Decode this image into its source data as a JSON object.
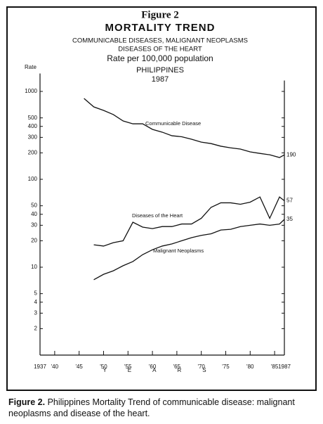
{
  "chart_data": {
    "type": "line",
    "figure_label": "Figure 2",
    "title": "MORTALITY TREND",
    "subtitle_lines": [
      "COMMUNICABLE DISEASES, MALIGNANT NEOPLASMS",
      "DISEASES OF THE HEART",
      "Rate per 100,000 population",
      "PHILIPPINES",
      "1987"
    ],
    "y_label": "Rate",
    "x_label": "YEARS",
    "log_y": true,
    "xlim": [
      1937,
      1987
    ],
    "ylim": [
      1,
      1600
    ],
    "xticks": [
      1937,
      {
        "value": 1940,
        "label": "'40"
      },
      {
        "value": 1945,
        "label": "'45"
      },
      {
        "value": 1950,
        "label": "'50"
      },
      {
        "value": 1955,
        "label": "'55"
      },
      {
        "value": 1960,
        "label": "'60"
      },
      {
        "value": 1965,
        "label": "'65"
      },
      {
        "value": 1970,
        "label": "'70"
      },
      {
        "value": 1975,
        "label": "'75"
      },
      {
        "value": 1980,
        "label": "'80"
      },
      {
        "value": 1985,
        "label": "'85"
      },
      1987
    ],
    "yticks": [
      1000,
      500,
      400,
      300,
      200,
      100,
      50,
      40,
      30,
      20,
      10,
      5,
      4,
      3,
      2
    ],
    "x": [
      1946,
      1948,
      1950,
      1952,
      1954,
      1956,
      1958,
      1960,
      1962,
      1964,
      1966,
      1968,
      1970,
      1972,
      1974,
      1976,
      1978,
      1980,
      1982,
      1984,
      1986,
      1987
    ],
    "series": [
      {
        "name": "Communicable Disease",
        "color": "#111111",
        "values": [
          832,
          667,
          608,
          545,
          461,
          428,
          428,
          370,
          344,
          313,
          305,
          286,
          265,
          255,
          238,
          228,
          221,
          205,
          197,
          190,
          177,
          190
        ],
        "value_labels": [
          null,
          null,
          null,
          null,
          null,
          null,
          null,
          null,
          null,
          null,
          null,
          null,
          null,
          null,
          null,
          null,
          null,
          null,
          null,
          null,
          null,
          "190"
        ]
      },
      {
        "name": "Diseases of the Heart",
        "color": "#111111",
        "values": [
          null,
          18,
          17.4,
          19,
          20,
          32.5,
          28.6,
          27.5,
          29,
          29,
          31,
          31,
          36,
          48,
          54,
          54,
          52,
          55,
          63,
          36,
          63,
          57
        ],
        "value_labels": [
          null,
          null,
          null,
          null,
          null,
          null,
          null,
          null,
          null,
          null,
          null,
          null,
          null,
          null,
          null,
          null,
          null,
          null,
          null,
          null,
          null,
          "57"
        ]
      },
      {
        "name": "Malignant Neoplasms",
        "color": "#111111",
        "values": [
          null,
          7.2,
          8.3,
          9.1,
          10.4,
          11.6,
          13.9,
          15.8,
          17.4,
          18.4,
          20,
          21.7,
          23,
          24,
          26.5,
          27,
          29,
          30,
          31,
          30,
          31,
          35
        ],
        "value_labels": [
          null,
          null,
          null,
          null,
          null,
          null,
          null,
          null,
          null,
          null,
          null,
          null,
          null,
          null,
          null,
          null,
          null,
          null,
          null,
          null,
          null,
          "35"
        ]
      }
    ]
  },
  "caption": {
    "label": "Figure 2.",
    "text": "Philippines Mortality Trend of communicable disease: malignant neoplasms and disease of the heart."
  }
}
